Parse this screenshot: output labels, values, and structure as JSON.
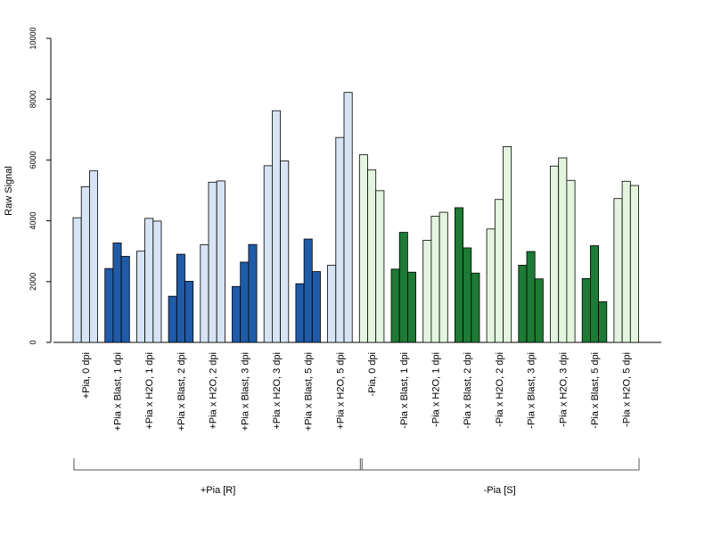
{
  "chart_data": {
    "type": "bar",
    "ylabel": "Raw Signal",
    "ylim": [
      0,
      10000
    ],
    "yticks": [
      0,
      2000,
      4000,
      6000,
      8000,
      10000
    ],
    "categories": [
      "+Pia, 0 dpi",
      "+Pia x Blast, 1 dpi",
      "+Pia x H2O, 1 dpi",
      "+Pia x Blast, 2 dpi",
      "+Pia x H2O, 2 dpi",
      "+Pia x Blast, 3 dpi",
      "+Pia x H2O, 3 dpi",
      "+Pia x Blast, 5 dpi",
      "+Pia x H2O, 5 dpi",
      "-Pia, 0 dpi",
      "-Pia x Blast, 1 dpi",
      "-Pia x H2O, 1 dpi",
      "-Pia x Blast, 2 dpi",
      "-Pia x H2O, 2 dpi",
      "-Pia x Blast, 3 dpi",
      "-Pia x H2O, 3 dpi",
      "-Pia x Blast, 5 dpi",
      "-Pia x H2O, 5 dpi"
    ],
    "values": [
      [
        4100,
        5120,
        5640
      ],
      [
        2430,
        3270,
        2830
      ],
      [
        3000,
        4080,
        3990
      ],
      [
        1520,
        2900,
        2010
      ],
      [
        3210,
        5270,
        5310
      ],
      [
        1840,
        2640,
        3220
      ],
      [
        5810,
        7620,
        5970
      ],
      [
        1930,
        3400,
        2330
      ],
      [
        2540,
        6740,
        8220
      ],
      [
        6170,
        5670,
        4990
      ],
      [
        2410,
        3620,
        2310
      ],
      [
        3360,
        4150,
        4280
      ],
      [
        4430,
        3110,
        2280
      ],
      [
        3730,
        4700,
        6440
      ],
      [
        2540,
        2990,
        2090
      ],
      [
        5800,
        6070,
        5330
      ],
      [
        2100,
        3180,
        1340
      ],
      [
        4730,
        5300,
        5160
      ]
    ],
    "bar_colors": [
      "#d6e4f5",
      "#1f5ba8",
      "#d6e4f5",
      "#1f5ba8",
      "#d6e4f5",
      "#1f5ba8",
      "#d6e4f5",
      "#1f5ba8",
      "#d6e4f5",
      "#e3f5de",
      "#1e7a34",
      "#e3f5de",
      "#1e7a34",
      "#e3f5de",
      "#1e7a34",
      "#e3f5de",
      "#1e7a34",
      "#e3f5de"
    ],
    "groups": [
      {
        "label": "+Pia [R]",
        "from": 0,
        "to": 8
      },
      {
        "label": "-Pia [S]",
        "from": 9,
        "to": 17
      }
    ],
    "grid": false
  }
}
